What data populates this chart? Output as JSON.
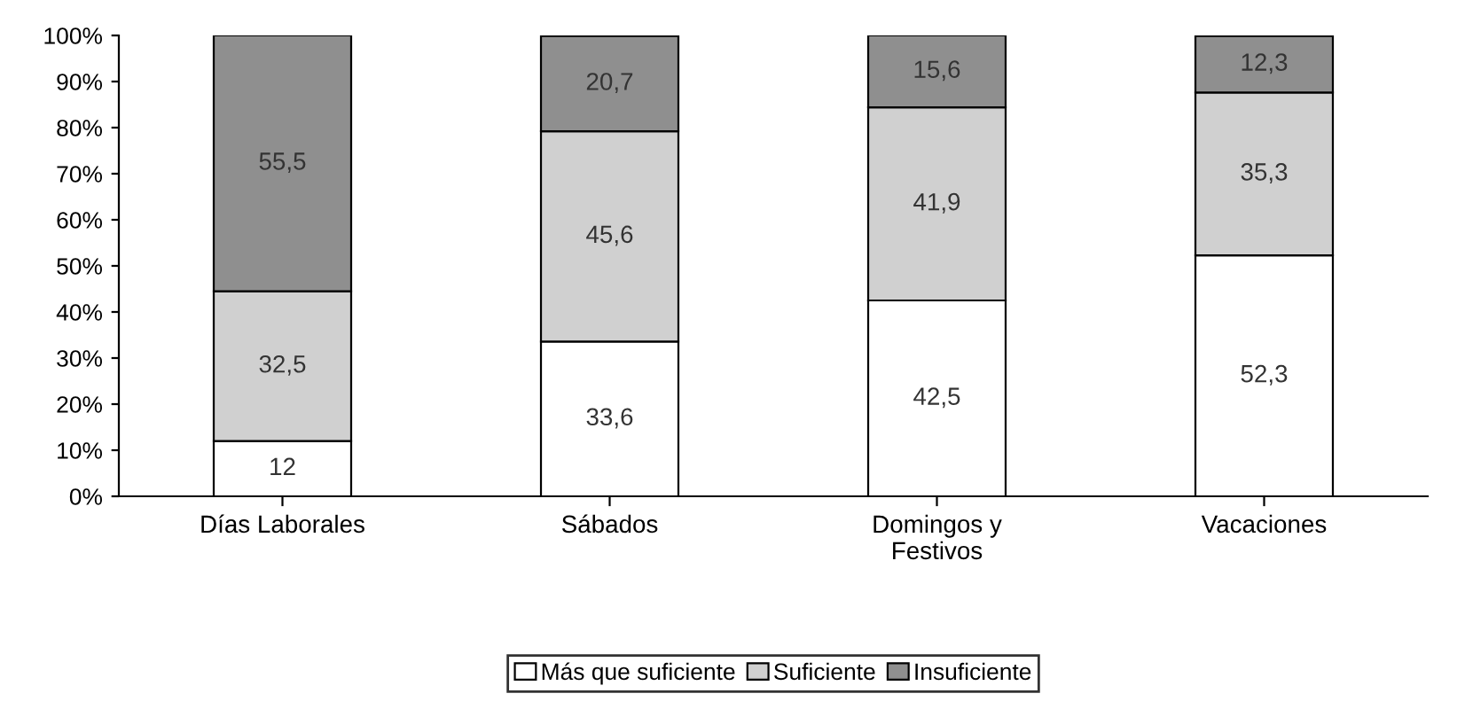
{
  "chart_data": {
    "type": "bar",
    "stacked": true,
    "categories": [
      "Días Laborales",
      "Sábados",
      "Domingos y\nFestivos",
      "Vacaciones"
    ],
    "series": [
      {
        "name": "Más que suficiente",
        "color": "#ffffff",
        "values": [
          12,
          33.6,
          42.5,
          52.3
        ],
        "value_labels": [
          "12",
          "33,6",
          "42,5",
          "52,3"
        ]
      },
      {
        "name": "Suficiente",
        "color": "#d0d0d0",
        "values": [
          32.5,
          45.6,
          41.9,
          35.3
        ],
        "value_labels": [
          "32,5",
          "45,6",
          "41,9",
          "35,3"
        ]
      },
      {
        "name": "Insuficiente",
        "color": "#8f8f8f",
        "values": [
          55.5,
          20.7,
          15.6,
          12.3
        ],
        "value_labels": [
          "55,5",
          "20,7",
          "15,6",
          "12,3"
        ]
      }
    ],
    "ylim": [
      0,
      100
    ],
    "yticks": [
      {
        "value": 0,
        "label": "0%"
      },
      {
        "value": 10,
        "label": "10%"
      },
      {
        "value": 20,
        "label": "20%"
      },
      {
        "value": 30,
        "label": "30%"
      },
      {
        "value": 40,
        "label": "40%"
      },
      {
        "value": 50,
        "label": "50%"
      },
      {
        "value": 60,
        "label": "60%"
      },
      {
        "value": 70,
        "label": "70%"
      },
      {
        "value": 80,
        "label": "80%"
      },
      {
        "value": 90,
        "label": "90%"
      },
      {
        "value": 100,
        "label": "100%"
      }
    ],
    "grid": false,
    "legend": "bottom"
  }
}
